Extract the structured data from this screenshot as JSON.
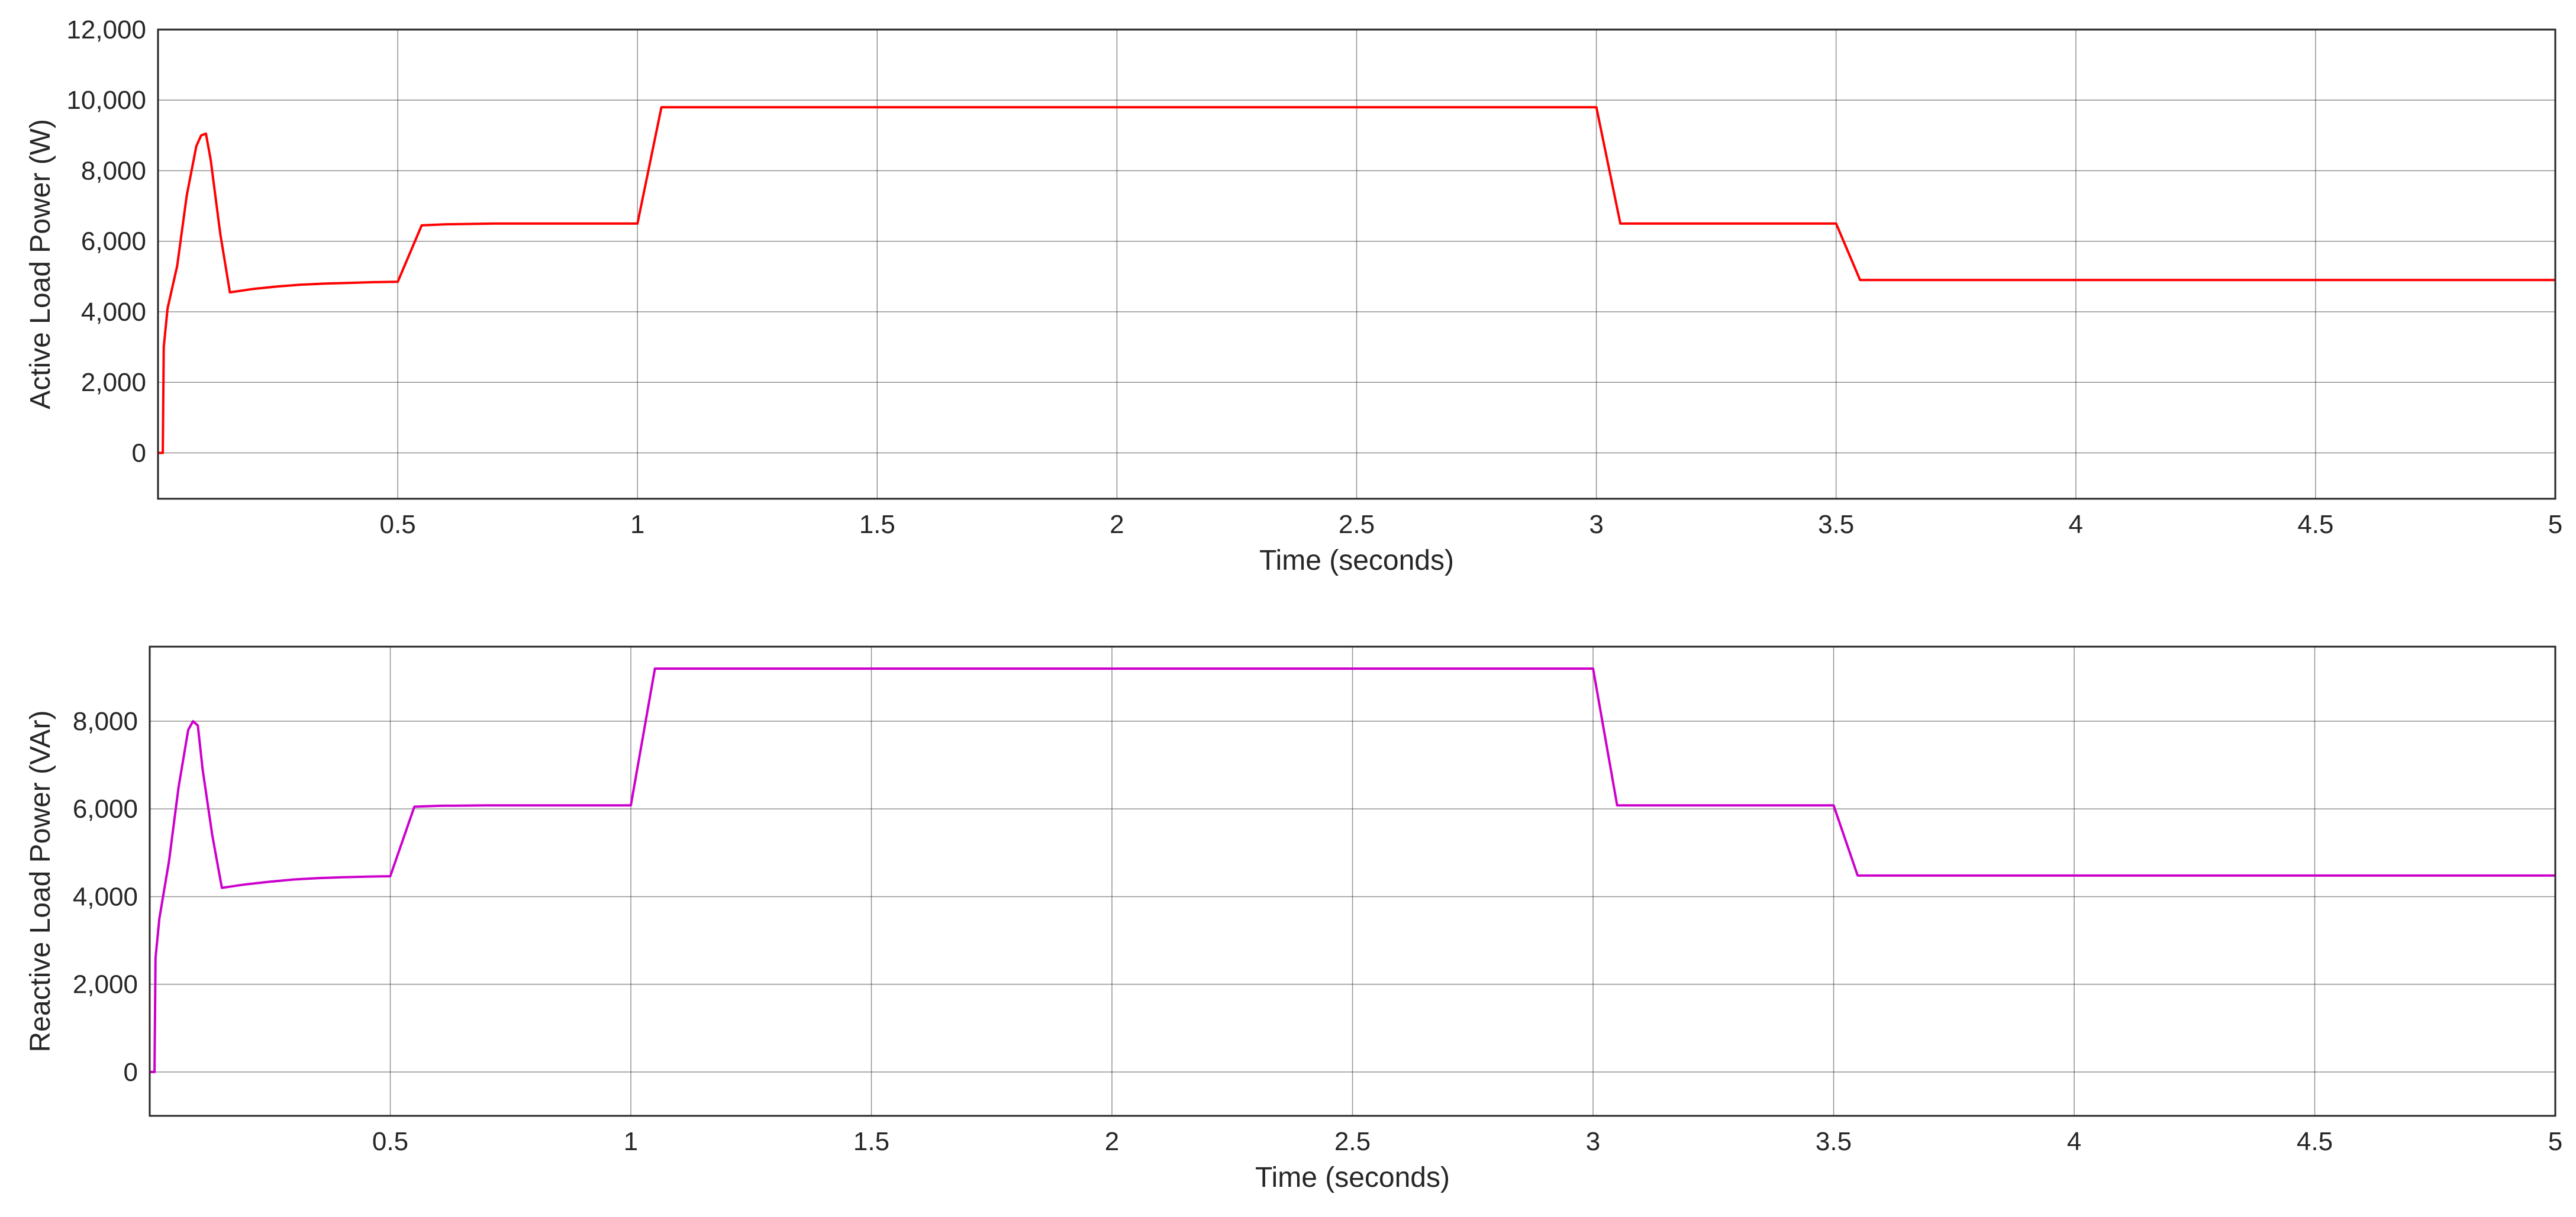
{
  "chart_data": [
    {
      "type": "line",
      "title": "",
      "xlabel": "Time (seconds)",
      "ylabel": "Active Load Power (W)",
      "xlim": [
        0.0,
        5.0
      ],
      "ylim": [
        -1300,
        12000
      ],
      "xticks": [
        0.5,
        1,
        1.5,
        2,
        2.5,
        3,
        3.5,
        4,
        4.5,
        5
      ],
      "xtick_labels": [
        "0.5",
        "1",
        "1.5",
        "2",
        "2.5",
        "3",
        "3.5",
        "4",
        "4.5",
        "5"
      ],
      "yticks": [
        0,
        2000,
        4000,
        6000,
        8000,
        10000,
        12000
      ],
      "ytick_labels": [
        "0",
        "2,000",
        "4,000",
        "6,000",
        "8,000",
        "10,000",
        "12,000"
      ],
      "grid": true,
      "color": "#ff0000",
      "series": [
        {
          "x": [
            0.0,
            0.01,
            0.012,
            0.02,
            0.04,
            0.06,
            0.08,
            0.09,
            0.1,
            0.11,
            0.13,
            0.15,
            0.2,
            0.25,
            0.3,
            0.35,
            0.4,
            0.45,
            0.5,
            0.55,
            0.6,
            0.7,
            0.8,
            0.9,
            1.0,
            1.05,
            1.5,
            2.0,
            2.5,
            3.0,
            3.05,
            3.5,
            3.55,
            4.0,
            4.5,
            5.0
          ],
          "y": [
            0,
            0,
            3000,
            4100,
            5300,
            7300,
            8700,
            9000,
            9050,
            8300,
            6200,
            4550,
            4650,
            4720,
            4770,
            4800,
            4820,
            4840,
            4850,
            6450,
            6480,
            6500,
            6500,
            6500,
            6500,
            9800,
            9800,
            9800,
            9800,
            9800,
            6500,
            6500,
            4900,
            4900,
            4900,
            4900
          ]
        }
      ]
    },
    {
      "type": "line",
      "title": "",
      "xlabel": "Time (seconds)",
      "ylabel": "Reactive Load Power (VAr)",
      "xlim": [
        0.0,
        5.0
      ],
      "ylim": [
        -1000,
        9700
      ],
      "xticks": [
        0.5,
        1,
        1.5,
        2,
        2.5,
        3,
        3.5,
        4,
        4.5,
        5
      ],
      "xtick_labels": [
        "0.5",
        "1",
        "1.5",
        "2",
        "2.5",
        "3",
        "3.5",
        "4",
        "4.5",
        "5"
      ],
      "yticks": [
        0,
        2000,
        4000,
        6000,
        8000
      ],
      "ytick_labels": [
        "0",
        "2,000",
        "4,000",
        "6,000",
        "8,000"
      ],
      "grid": true,
      "color": "#cc00cc",
      "series": [
        {
          "x": [
            0.0,
            0.01,
            0.012,
            0.02,
            0.04,
            0.06,
            0.08,
            0.09,
            0.1,
            0.11,
            0.13,
            0.15,
            0.2,
            0.25,
            0.3,
            0.35,
            0.4,
            0.45,
            0.5,
            0.55,
            0.6,
            0.7,
            0.8,
            0.9,
            1.0,
            1.05,
            1.5,
            2.0,
            2.5,
            3.0,
            3.05,
            3.5,
            3.55,
            4.0,
            4.5,
            5.0
          ],
          "y": [
            0,
            0,
            2600,
            3500,
            4800,
            6500,
            7800,
            8000,
            7900,
            6900,
            5400,
            4200,
            4280,
            4340,
            4390,
            4420,
            4440,
            4455,
            4465,
            6050,
            6070,
            6080,
            6080,
            6080,
            6080,
            9200,
            9200,
            9200,
            9200,
            9200,
            6080,
            6080,
            4480,
            4480,
            4480,
            4480
          ]
        }
      ]
    }
  ]
}
